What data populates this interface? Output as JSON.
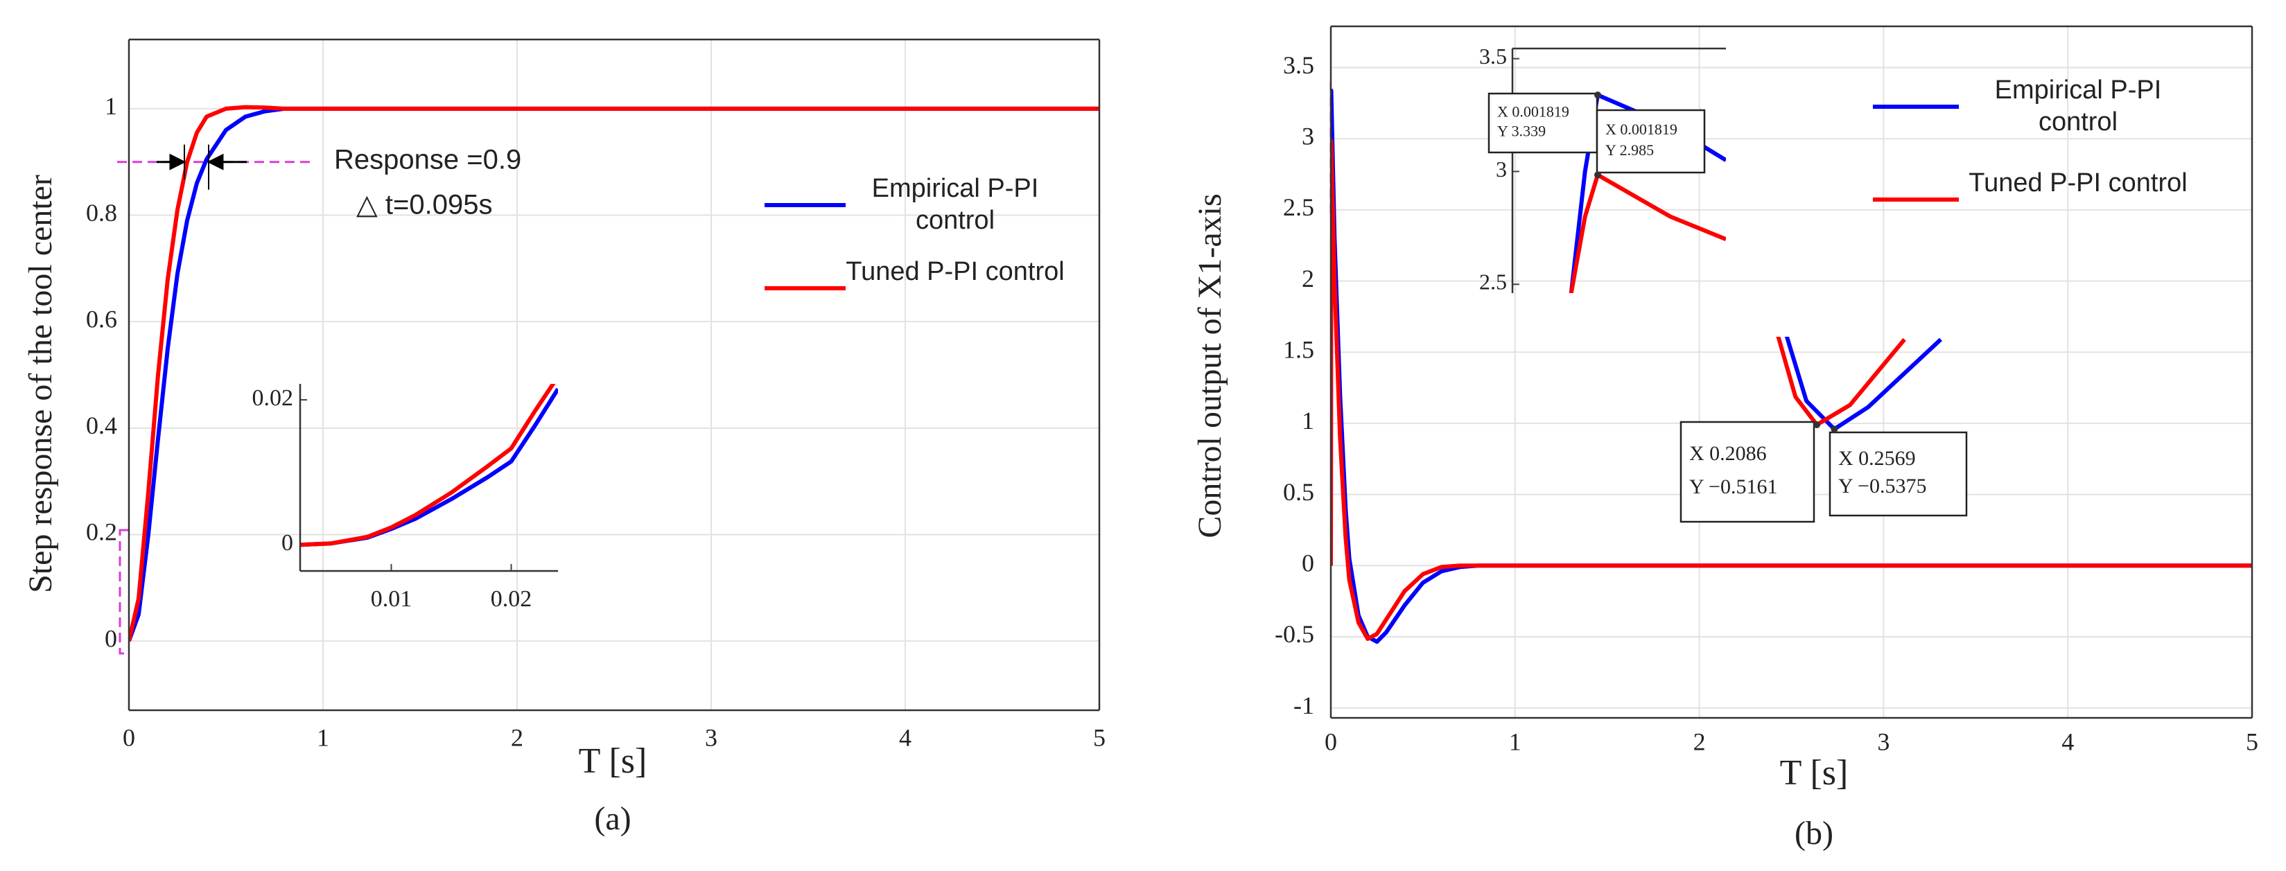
{
  "chart_data": [
    {
      "type": "line",
      "ylabel": "Step response of the tool center",
      "xlabel": "T [s]",
      "caption": "(a)",
      "x": [
        0,
        0.05,
        0.1,
        0.15,
        0.2,
        0.25,
        0.3,
        0.35,
        0.4,
        0.5,
        0.6,
        0.7,
        0.8,
        1,
        2,
        3,
        4,
        5
      ],
      "series": [
        {
          "name": "Empirical P-PI control",
          "color": "#0000ff",
          "values": [
            0,
            0.05,
            0.2,
            0.38,
            0.55,
            0.69,
            0.79,
            0.86,
            0.905,
            0.96,
            0.985,
            0.995,
            1.0,
            1.0,
            1.0,
            1.0,
            1.0,
            1.0
          ]
        },
        {
          "name": "Tuned P-PI control",
          "color": "#ff0000",
          "values": [
            0,
            0.08,
            0.28,
            0.5,
            0.68,
            0.81,
            0.9,
            0.955,
            0.985,
            1.0,
            1.003,
            1.002,
            1.0,
            1.0,
            1.0,
            1.0,
            1.0,
            1.0
          ]
        }
      ],
      "xlim": [
        0,
        5
      ],
      "xticks": [
        0,
        1,
        2,
        3,
        4,
        5
      ],
      "ylim": [
        -0.13,
        1.13
      ],
      "yticks": [
        0,
        0.2,
        0.4,
        0.6,
        0.8,
        1
      ],
      "grid": true,
      "response_level": 0.9,
      "annotations": [
        "Response =0.9",
        "△ t=0.095s"
      ]
    },
    {
      "type": "line",
      "x": [
        0.0024,
        0.005,
        0.008,
        0.01,
        0.012,
        0.015,
        0.018,
        0.02,
        0.022,
        0.0239
      ],
      "series": [
        {
          "name": "Empirical P-PI control",
          "color": "#0000ff",
          "values": [
            0,
            0.0002,
            0.001,
            0.0022,
            0.0036,
            0.0063,
            0.0093,
            0.0115,
            0.0165,
            0.0215
          ]
        },
        {
          "name": "Tuned P-PI control",
          "color": "#ff0000",
          "values": [
            0,
            0.0002,
            0.0011,
            0.0024,
            0.0041,
            0.0072,
            0.0108,
            0.0133,
            0.0185,
            0.0232
          ]
        }
      ],
      "xlim": [
        0.0024,
        0.0239
      ],
      "xticks": [
        0.01,
        0.02
      ],
      "ylim": [
        -0.0036,
        0.0222
      ],
      "yticks": [
        0,
        0.02
      ]
    },
    {
      "type": "line",
      "ylabel": "Control output of X1-axis",
      "xlabel": "T [s]",
      "caption": "(b)",
      "x": [
        0,
        0.002,
        0.02,
        0.05,
        0.08,
        0.1,
        0.15,
        0.2,
        0.25,
        0.3,
        0.4,
        0.5,
        0.6,
        0.7,
        0.8,
        0.9,
        1,
        2,
        3,
        4,
        5
      ],
      "series": [
        {
          "name": "Empirical P-PI control",
          "color": "#0000ff",
          "values": [
            0,
            3.339,
            2.3,
            1.2,
            0.4,
            0.05,
            -0.35,
            -0.5,
            -0.535,
            -0.47,
            -0.28,
            -0.12,
            -0.04,
            -0.01,
            0,
            0,
            0,
            0,
            0,
            0,
            0
          ]
        },
        {
          "name": "Tuned P-PI control",
          "color": "#ff0000",
          "values": [
            0,
            2.985,
            2.0,
            0.9,
            0.2,
            -0.1,
            -0.4,
            -0.515,
            -0.48,
            -0.38,
            -0.18,
            -0.06,
            -0.01,
            0,
            0,
            0,
            0,
            0,
            0,
            0,
            0
          ]
        }
      ],
      "xlim": [
        0,
        5
      ],
      "xticks": [
        0,
        1,
        2,
        3,
        4,
        5
      ],
      "ylim": [
        -1.07,
        3.79
      ],
      "yticks": [
        -1,
        -0.5,
        0,
        0.5,
        1,
        1.5,
        2,
        2.5,
        3,
        3.5
      ],
      "grid": true
    },
    {
      "type": "line",
      "x": [
        0.00157,
        0.0017,
        0.001819,
        0.0025,
        0.00302
      ],
      "series": [
        {
          "name": "Empirical P-PI control",
          "color": "#0000ff",
          "values": [
            2.46,
            3.0,
            3.339,
            3.2,
            3.05
          ]
        },
        {
          "name": "Tuned P-PI control",
          "color": "#ff0000",
          "values": [
            2.46,
            2.8,
            2.985,
            2.8,
            2.7
          ]
        }
      ],
      "xlim": [
        0.00102,
        0.00302
      ],
      "ylim": [
        2.461,
        3.545
      ],
      "yticks": [
        2.5,
        3,
        3.5
      ],
      "datatips": [
        {
          "x": 0.001819,
          "y": 3.339,
          "labels": [
            "X 0.001819",
            "Y 3.339"
          ]
        },
        {
          "x": 0.001819,
          "y": 2.985,
          "labels": [
            "X 0.001819",
            "Y 2.985"
          ]
        }
      ]
    },
    {
      "type": "line",
      "series": [
        {
          "name": "Empirical P-PI control",
          "color": "#0000ff",
          "x": [
            0.12,
            0.18,
            0.2569,
            0.35,
            0.55
          ],
          "values": [
            -0.05,
            -0.4,
            -0.5375,
            -0.43,
            -0.1
          ]
        },
        {
          "name": "Tuned P-PI control",
          "color": "#ff0000",
          "x": [
            0.1,
            0.15,
            0.2086,
            0.3,
            0.45
          ],
          "values": [
            -0.07,
            -0.38,
            -0.5161,
            -0.42,
            -0.1
          ]
        }
      ],
      "xlim": [
        -0.215,
        0.672
      ],
      "ylim": [
        -1.03,
        -0.087
      ],
      "datatips": [
        {
          "x": 0.2086,
          "y": -0.5161,
          "labels": [
            "X 0.2086",
            "Y −0.5161"
          ]
        },
        {
          "x": 0.2569,
          "y": -0.5375,
          "labels": [
            "X 0.2569",
            "Y −0.5375"
          ]
        }
      ]
    }
  ]
}
